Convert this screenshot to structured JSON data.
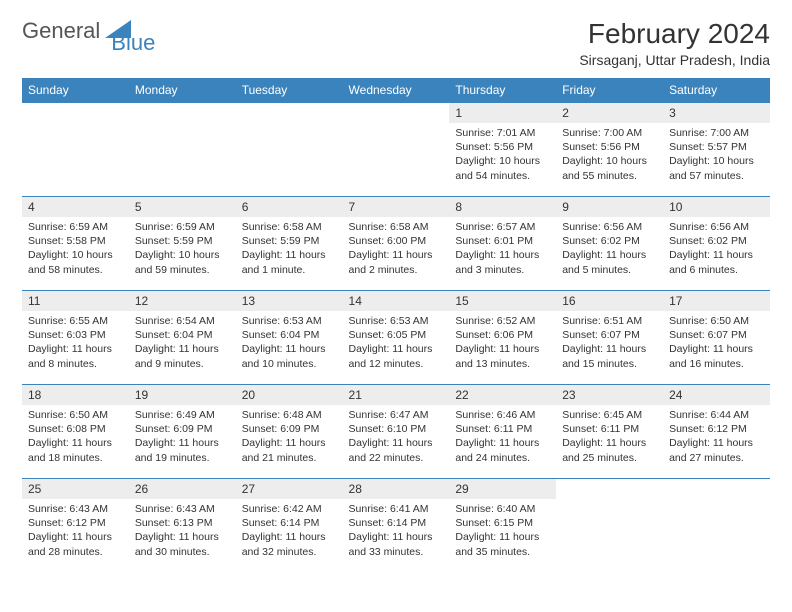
{
  "brand": {
    "part1": "General",
    "part2": "Blue"
  },
  "title": "February 2024",
  "location": "Sirsaganj, Uttar Pradesh, India",
  "colors": {
    "header_bg": "#3b83bd",
    "header_text": "#ffffff",
    "daynum_bg": "#ededed",
    "border": "#3b83bd",
    "body_text": "#333333",
    "background": "#ffffff"
  },
  "day_headers": [
    "Sunday",
    "Monday",
    "Tuesday",
    "Wednesday",
    "Thursday",
    "Friday",
    "Saturday"
  ],
  "weeks": [
    [
      null,
      null,
      null,
      null,
      {
        "n": "1",
        "sr": "Sunrise: 7:01 AM",
        "ss": "Sunset: 5:56 PM",
        "dl": "Daylight: 10 hours and 54 minutes."
      },
      {
        "n": "2",
        "sr": "Sunrise: 7:00 AM",
        "ss": "Sunset: 5:56 PM",
        "dl": "Daylight: 10 hours and 55 minutes."
      },
      {
        "n": "3",
        "sr": "Sunrise: 7:00 AM",
        "ss": "Sunset: 5:57 PM",
        "dl": "Daylight: 10 hours and 57 minutes."
      }
    ],
    [
      {
        "n": "4",
        "sr": "Sunrise: 6:59 AM",
        "ss": "Sunset: 5:58 PM",
        "dl": "Daylight: 10 hours and 58 minutes."
      },
      {
        "n": "5",
        "sr": "Sunrise: 6:59 AM",
        "ss": "Sunset: 5:59 PM",
        "dl": "Daylight: 10 hours and 59 minutes."
      },
      {
        "n": "6",
        "sr": "Sunrise: 6:58 AM",
        "ss": "Sunset: 5:59 PM",
        "dl": "Daylight: 11 hours and 1 minute."
      },
      {
        "n": "7",
        "sr": "Sunrise: 6:58 AM",
        "ss": "Sunset: 6:00 PM",
        "dl": "Daylight: 11 hours and 2 minutes."
      },
      {
        "n": "8",
        "sr": "Sunrise: 6:57 AM",
        "ss": "Sunset: 6:01 PM",
        "dl": "Daylight: 11 hours and 3 minutes."
      },
      {
        "n": "9",
        "sr": "Sunrise: 6:56 AM",
        "ss": "Sunset: 6:02 PM",
        "dl": "Daylight: 11 hours and 5 minutes."
      },
      {
        "n": "10",
        "sr": "Sunrise: 6:56 AM",
        "ss": "Sunset: 6:02 PM",
        "dl": "Daylight: 11 hours and 6 minutes."
      }
    ],
    [
      {
        "n": "11",
        "sr": "Sunrise: 6:55 AM",
        "ss": "Sunset: 6:03 PM",
        "dl": "Daylight: 11 hours and 8 minutes."
      },
      {
        "n": "12",
        "sr": "Sunrise: 6:54 AM",
        "ss": "Sunset: 6:04 PM",
        "dl": "Daylight: 11 hours and 9 minutes."
      },
      {
        "n": "13",
        "sr": "Sunrise: 6:53 AM",
        "ss": "Sunset: 6:04 PM",
        "dl": "Daylight: 11 hours and 10 minutes."
      },
      {
        "n": "14",
        "sr": "Sunrise: 6:53 AM",
        "ss": "Sunset: 6:05 PM",
        "dl": "Daylight: 11 hours and 12 minutes."
      },
      {
        "n": "15",
        "sr": "Sunrise: 6:52 AM",
        "ss": "Sunset: 6:06 PM",
        "dl": "Daylight: 11 hours and 13 minutes."
      },
      {
        "n": "16",
        "sr": "Sunrise: 6:51 AM",
        "ss": "Sunset: 6:07 PM",
        "dl": "Daylight: 11 hours and 15 minutes."
      },
      {
        "n": "17",
        "sr": "Sunrise: 6:50 AM",
        "ss": "Sunset: 6:07 PM",
        "dl": "Daylight: 11 hours and 16 minutes."
      }
    ],
    [
      {
        "n": "18",
        "sr": "Sunrise: 6:50 AM",
        "ss": "Sunset: 6:08 PM",
        "dl": "Daylight: 11 hours and 18 minutes."
      },
      {
        "n": "19",
        "sr": "Sunrise: 6:49 AM",
        "ss": "Sunset: 6:09 PM",
        "dl": "Daylight: 11 hours and 19 minutes."
      },
      {
        "n": "20",
        "sr": "Sunrise: 6:48 AM",
        "ss": "Sunset: 6:09 PM",
        "dl": "Daylight: 11 hours and 21 minutes."
      },
      {
        "n": "21",
        "sr": "Sunrise: 6:47 AM",
        "ss": "Sunset: 6:10 PM",
        "dl": "Daylight: 11 hours and 22 minutes."
      },
      {
        "n": "22",
        "sr": "Sunrise: 6:46 AM",
        "ss": "Sunset: 6:11 PM",
        "dl": "Daylight: 11 hours and 24 minutes."
      },
      {
        "n": "23",
        "sr": "Sunrise: 6:45 AM",
        "ss": "Sunset: 6:11 PM",
        "dl": "Daylight: 11 hours and 25 minutes."
      },
      {
        "n": "24",
        "sr": "Sunrise: 6:44 AM",
        "ss": "Sunset: 6:12 PM",
        "dl": "Daylight: 11 hours and 27 minutes."
      }
    ],
    [
      {
        "n": "25",
        "sr": "Sunrise: 6:43 AM",
        "ss": "Sunset: 6:12 PM",
        "dl": "Daylight: 11 hours and 28 minutes."
      },
      {
        "n": "26",
        "sr": "Sunrise: 6:43 AM",
        "ss": "Sunset: 6:13 PM",
        "dl": "Daylight: 11 hours and 30 minutes."
      },
      {
        "n": "27",
        "sr": "Sunrise: 6:42 AM",
        "ss": "Sunset: 6:14 PM",
        "dl": "Daylight: 11 hours and 32 minutes."
      },
      {
        "n": "28",
        "sr": "Sunrise: 6:41 AM",
        "ss": "Sunset: 6:14 PM",
        "dl": "Daylight: 11 hours and 33 minutes."
      },
      {
        "n": "29",
        "sr": "Sunrise: 6:40 AM",
        "ss": "Sunset: 6:15 PM",
        "dl": "Daylight: 11 hours and 35 minutes."
      },
      null,
      null
    ]
  ]
}
